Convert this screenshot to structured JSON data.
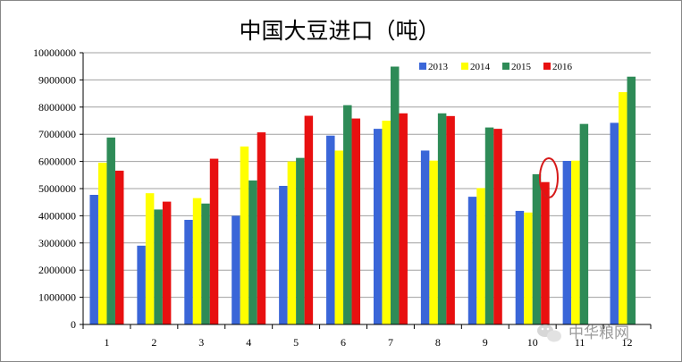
{
  "chart_data": {
    "type": "bar",
    "title": "中国大豆进口（吨）",
    "xlabel": "",
    "ylabel": "",
    "categories": [
      "1",
      "2",
      "3",
      "4",
      "5",
      "6",
      "7",
      "8",
      "9",
      "10",
      "11",
      "12"
    ],
    "ylim": [
      0,
      10000000
    ],
    "yticks": [
      "0",
      "1000000",
      "2000000",
      "3000000",
      "4000000",
      "5000000",
      "6000000",
      "7000000",
      "8000000",
      "9000000",
      "10000000"
    ],
    "grid": true,
    "legend_position": "top-right",
    "series": [
      {
        "name": "2013",
        "color": "#3a66d8",
        "values": [
          4770000,
          2900000,
          3850000,
          4000000,
          5100000,
          6950000,
          7200000,
          6400000,
          4700000,
          4180000,
          6020000,
          7420000
        ]
      },
      {
        "name": "2014",
        "color": "#ffff00",
        "values": [
          5950000,
          4830000,
          4650000,
          6550000,
          6000000,
          6400000,
          7500000,
          6030000,
          5020000,
          4120000,
          6030000,
          8550000
        ]
      },
      {
        "name": "2015",
        "color": "#2e8b57",
        "values": [
          6880000,
          4230000,
          4450000,
          5300000,
          6130000,
          8070000,
          9490000,
          7770000,
          7250000,
          5530000,
          7380000,
          9120000
        ]
      },
      {
        "name": "2016",
        "color": "#e81010",
        "values": [
          5660000,
          4520000,
          6100000,
          7070000,
          7680000,
          7580000,
          7770000,
          7670000,
          7200000,
          5240000,
          null,
          null
        ]
      }
    ]
  },
  "watermark": {
    "text": "中华粮网",
    "icon": "wechat-icon"
  }
}
